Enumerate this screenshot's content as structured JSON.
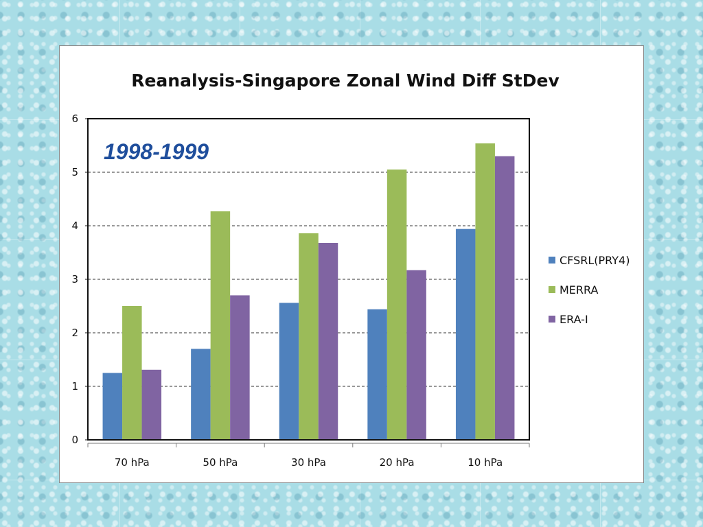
{
  "chart_data": {
    "type": "bar",
    "title": "Reanalysis-Singapore Zonal Wind Diff StDev",
    "annotation": "1998-1999",
    "categories": [
      "70 hPa",
      "50 hPa",
      "30 hPa",
      "20 hPa",
      "10 hPa"
    ],
    "series": [
      {
        "name": "CFSRL(PRY4)",
        "color": "#4f81bd",
        "values": [
          1.25,
          1.7,
          2.56,
          2.44,
          3.94
        ]
      },
      {
        "name": "MERRA",
        "color": "#9bbb59",
        "values": [
          2.5,
          4.27,
          3.86,
          5.05,
          5.54
        ]
      },
      {
        "name": "ERA-I",
        "color": "#8064a2",
        "values": [
          1.31,
          2.7,
          3.68,
          3.17,
          5.3
        ]
      }
    ],
    "ylim": [
      0,
      6
    ],
    "yticks": [
      "0",
      "1",
      "2",
      "3",
      "4",
      "5",
      "6"
    ],
    "grid": "horizontal dashed",
    "legend_position": "right"
  }
}
